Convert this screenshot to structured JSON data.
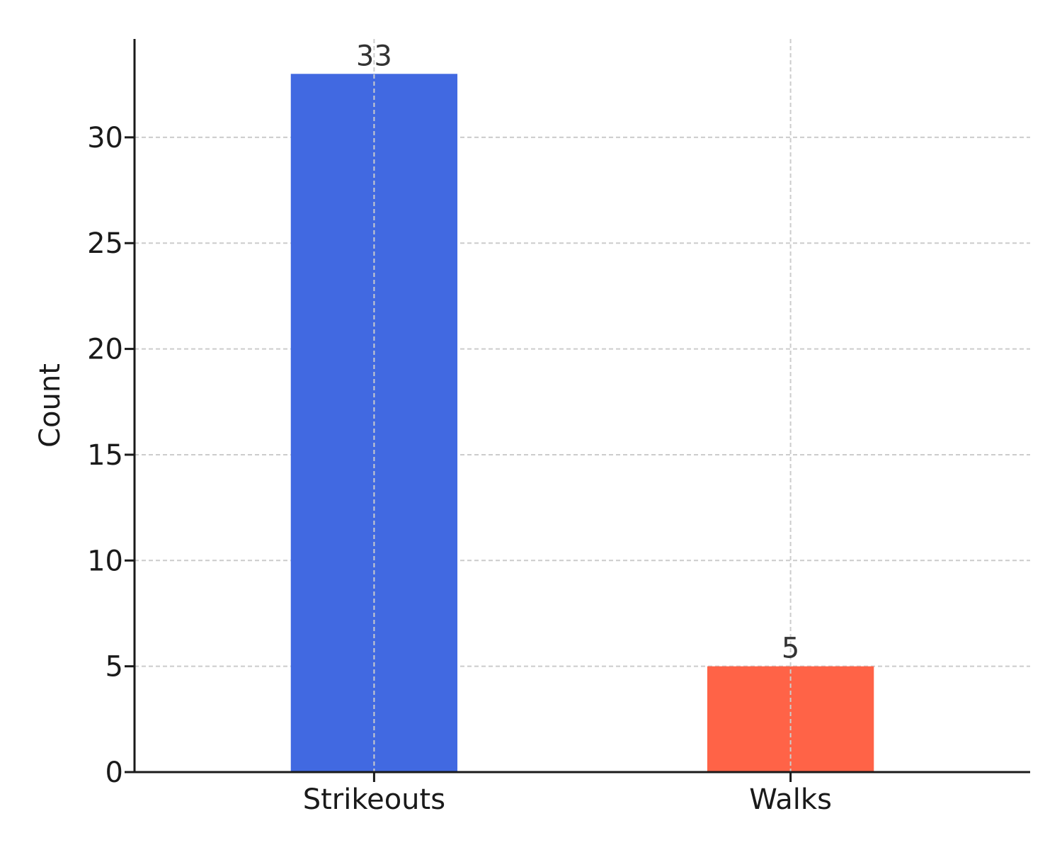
{
  "chart_data": {
    "type": "bar",
    "categories": [
      "Strikeouts",
      "Walks"
    ],
    "values": [
      33,
      5
    ],
    "colors": [
      "#4169e1",
      "#ff6347"
    ],
    "ylabel": "Count",
    "ylim": [
      0,
      34.65
    ],
    "yticks": [
      0,
      5,
      10,
      15,
      20,
      25,
      30
    ],
    "ytick_labels": [
      "0",
      "5",
      "10",
      "15",
      "20",
      "25",
      "30"
    ],
    "data_labels": [
      "33",
      "5"
    ],
    "grid": true
  }
}
